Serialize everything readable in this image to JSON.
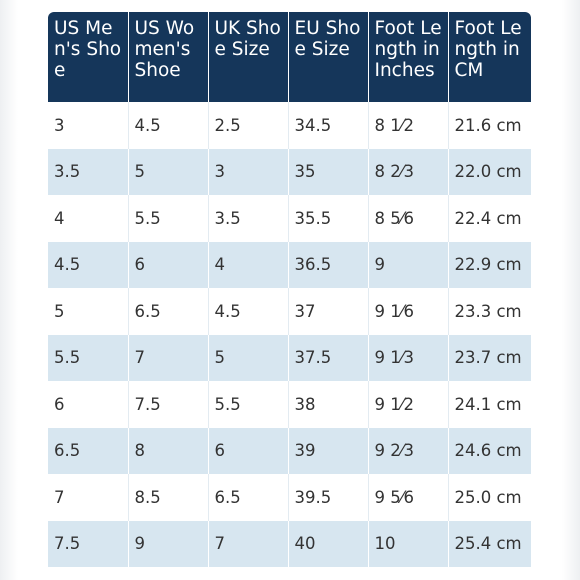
{
  "table": {
    "headers": [
      "US Men's Shoe",
      "US Women's Shoe",
      "UK Shoe Size",
      "EU Shoe Size",
      "Foot Length in Inches",
      "Foot Length in CM"
    ],
    "rows": [
      [
        "3",
        "4.5",
        "2.5",
        "34.5",
        "8 1⁄2",
        "21.6 cm"
      ],
      [
        "3.5",
        "5",
        "3",
        "35",
        "8 2⁄3",
        "22.0 cm"
      ],
      [
        "4",
        "5.5",
        "3.5",
        "35.5",
        "8 5⁄6",
        "22.4 cm"
      ],
      [
        "4.5",
        "6",
        "4",
        "36.5",
        "9",
        "22.9 cm"
      ],
      [
        "5",
        "6.5",
        "4.5",
        "37",
        "9 1⁄6",
        "23.3 cm"
      ],
      [
        "5.5",
        "7",
        "5",
        "37.5",
        "9 1⁄3",
        "23.7 cm"
      ],
      [
        "6",
        "7.5",
        "5.5",
        "38",
        "9 1⁄2",
        "24.1 cm"
      ],
      [
        "6.5",
        "8",
        "6",
        "39",
        "9 2⁄3",
        "24.6 cm"
      ],
      [
        "7",
        "8.5",
        "6.5",
        "39.5",
        "9 5⁄6",
        "25.0 cm"
      ],
      [
        "7.5",
        "9",
        "7",
        "40",
        "10",
        "25.4 cm"
      ]
    ]
  },
  "colors": {
    "header_bg": "#15365a",
    "stripe_bg": "#d7e6f0",
    "text": "#333333"
  }
}
